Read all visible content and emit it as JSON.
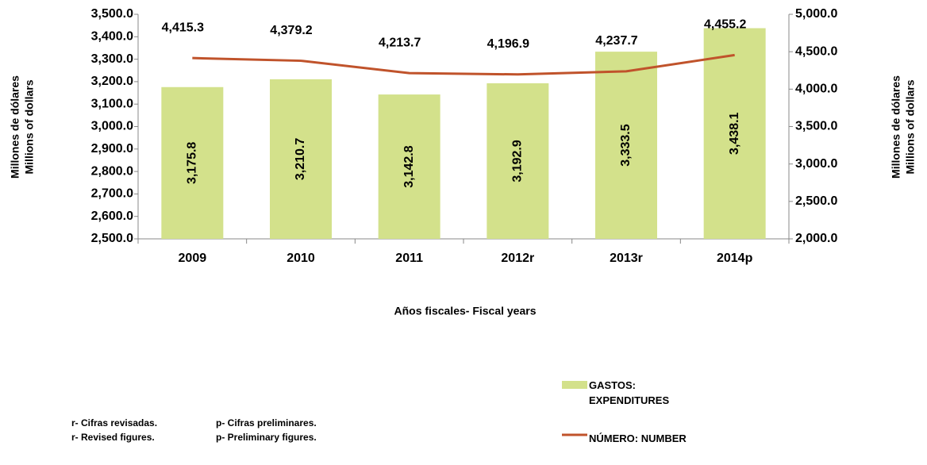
{
  "chart_data": {
    "type": "bar_line",
    "categories": [
      "2009",
      "2010",
      "2011",
      "2012r",
      "2013r",
      "2014p"
    ],
    "series": [
      {
        "name": "GASTOS: EXPENDITURES",
        "type": "bar",
        "color": "#d3e18b",
        "values": [
          3175.8,
          3210.7,
          3142.8,
          3192.9,
          3333.5,
          3438.1
        ],
        "value_labels": [
          "3,175.8",
          "3,210.7",
          "3,142.8",
          "3,192.9",
          "3,333.5",
          "3,438.1"
        ]
      },
      {
        "name": "NÚMERO: NUMBER",
        "type": "line",
        "axis": "y2",
        "color": "#c0532b",
        "values": [
          4415.3,
          4379.2,
          4213.7,
          4196.9,
          4237.7,
          4455.2
        ],
        "value_labels": [
          "4,415.3",
          "4,379.2",
          "4,213.7",
          "4,196.9",
          "4,237.7",
          "4,455.2"
        ]
      }
    ],
    "ylim": [
      2500,
      3500
    ],
    "yticks": [
      {
        "value": 2500,
        "label": "2,500.0"
      },
      {
        "value": 2600,
        "label": "2,600.0"
      },
      {
        "value": 2700,
        "label": "2,700.0"
      },
      {
        "value": 2800,
        "label": "2,800.0"
      },
      {
        "value": 2900,
        "label": "2,900.0"
      },
      {
        "value": 3000,
        "label": "3,000.0"
      },
      {
        "value": 3100,
        "label": "3,100.0"
      },
      {
        "value": 3200,
        "label": "3,200.0"
      },
      {
        "value": 3300,
        "label": "3,300.0"
      },
      {
        "value": 3400,
        "label": "3,400.0"
      },
      {
        "value": 3500,
        "label": "3,500.0"
      }
    ],
    "y2lim": [
      2000,
      5000
    ],
    "y2ticks": [
      {
        "value": 2000,
        "label": "2,000.0"
      },
      {
        "value": 2500,
        "label": "2,500.0"
      },
      {
        "value": 3000,
        "label": "3,000.0"
      },
      {
        "value": 3500,
        "label": "3,500.0"
      },
      {
        "value": 4000,
        "label": "4,000.0"
      },
      {
        "value": 4500,
        "label": "4,500.0"
      },
      {
        "value": 5000,
        "label": "5,000.0"
      }
    ],
    "y_label": [
      "Millones de dólares",
      "Millions of dollars"
    ],
    "y2_label": [
      "Millones de dólares",
      "Millions of dollars"
    ],
    "x_label": "Años fiscales- Fiscal years",
    "notes": [
      "r- Cifras revisadas.",
      "r- Revised figures.",
      "p- Cifras preliminares.",
      "p- Preliminary figures."
    ]
  }
}
